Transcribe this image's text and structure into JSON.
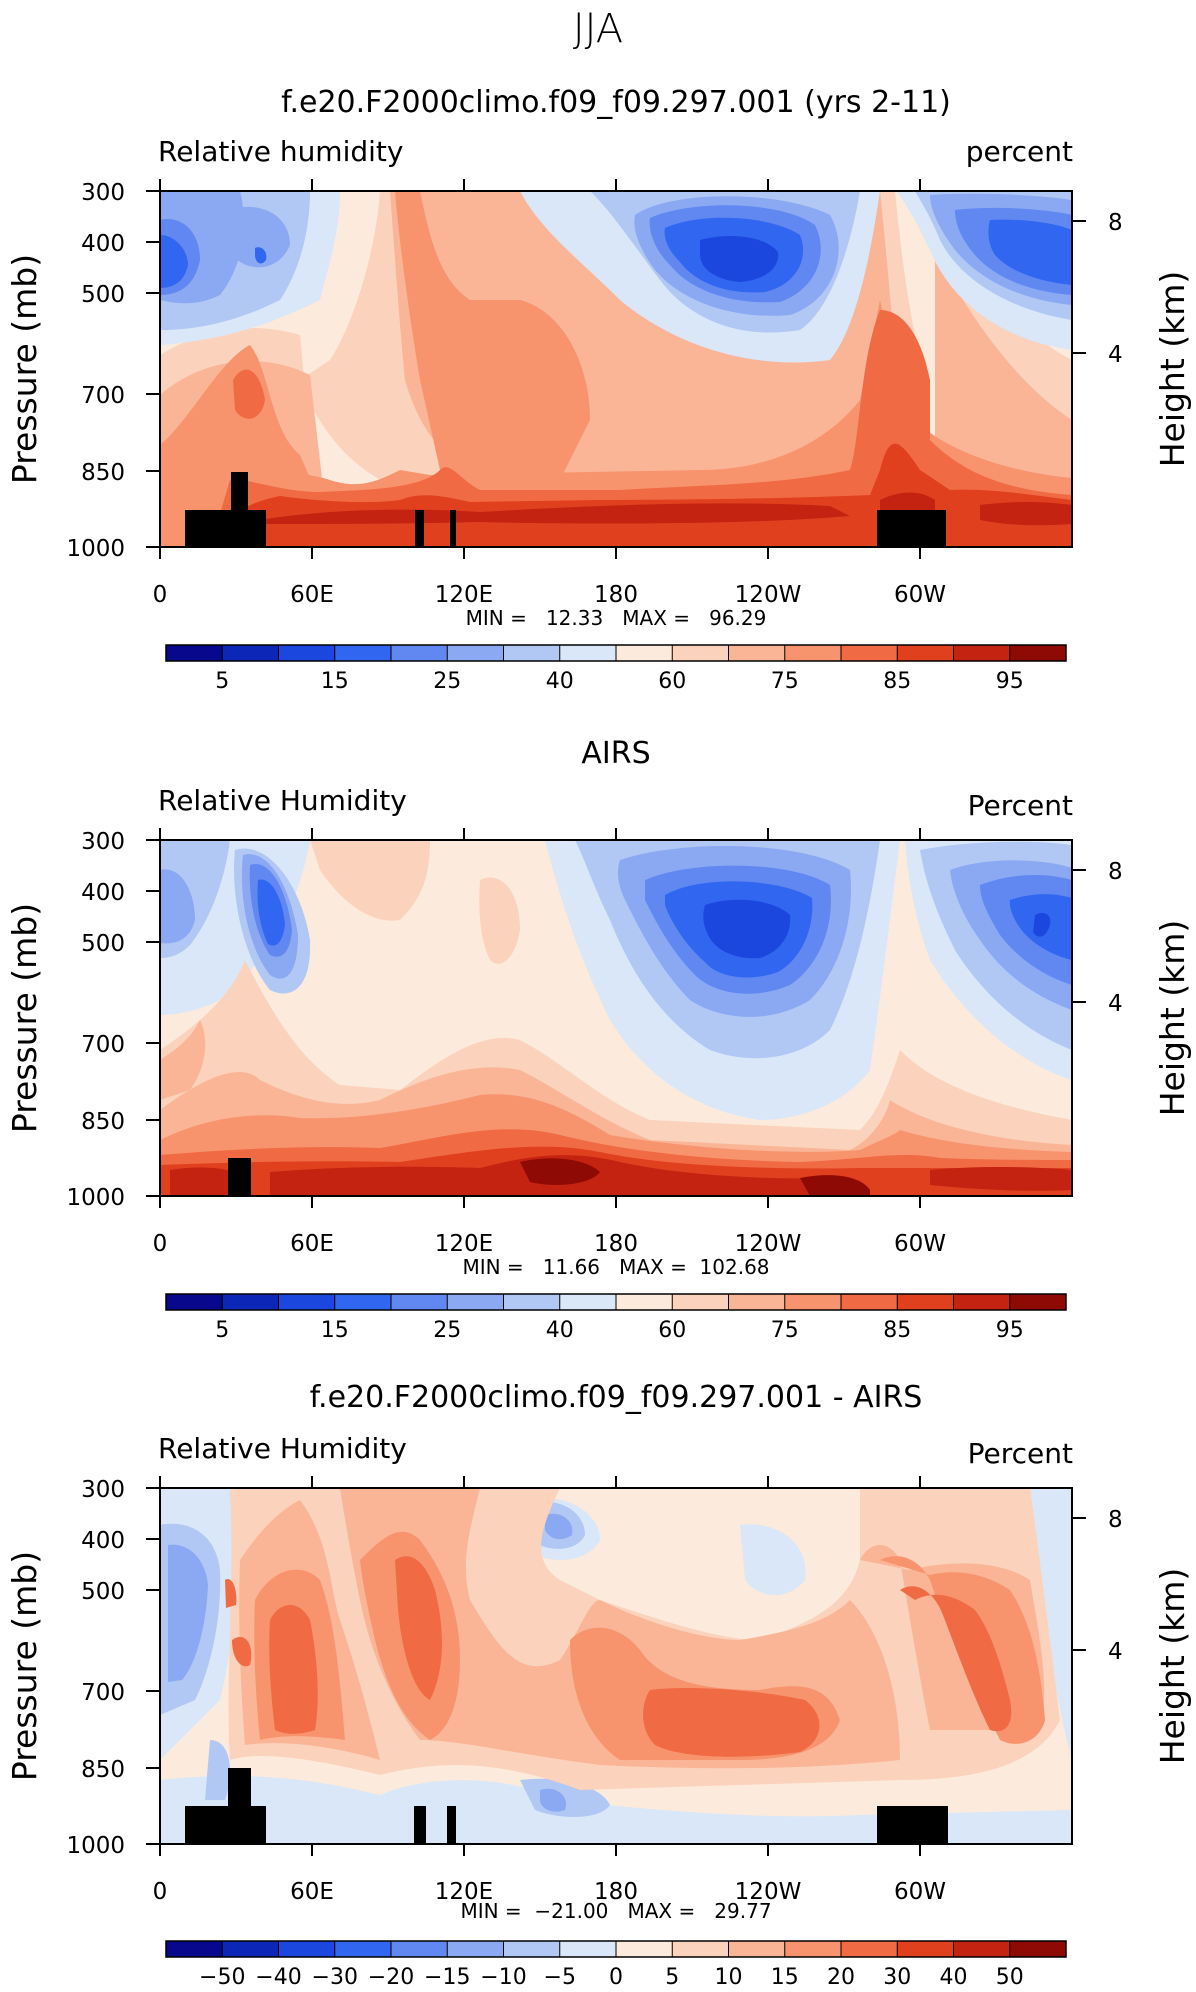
{
  "season": "JJA",
  "colorbars": [
    {
      "colors": [
        "#08088c",
        "#0c27b8",
        "#1c47de",
        "#3166f0",
        "#6188f0",
        "#8aa9f2",
        "#b1c7f4",
        "#d9e7f8",
        "#fcebdc",
        "#fbd2bc",
        "#fab597",
        "#f7946e",
        "#f06a44",
        "#e1401f",
        "#c42312",
        "#8e0a05"
      ],
      "labels": [
        "5",
        "15",
        "25",
        "40",
        "60",
        "75",
        "85",
        "95"
      ]
    },
    {
      "colors": [
        "#08088c",
        "#0c27b8",
        "#1c47de",
        "#3166f0",
        "#6188f0",
        "#8aa9f2",
        "#b1c7f4",
        "#d9e7f8",
        "#fcebdc",
        "#fbd2bc",
        "#fab597",
        "#f7946e",
        "#f06a44",
        "#e1401f",
        "#c42312",
        "#8e0a05"
      ],
      "labels": [
        "5",
        "15",
        "25",
        "40",
        "60",
        "75",
        "85",
        "95"
      ]
    },
    {
      "colors": [
        "#08088c",
        "#0c27b8",
        "#1c47de",
        "#3166f0",
        "#6188f0",
        "#8aa9f2",
        "#b1c7f4",
        "#d9e7f8",
        "#fcebdc",
        "#fbd2bc",
        "#fab597",
        "#f7946e",
        "#f06a44",
        "#e1401f",
        "#c42312",
        "#8e0a05"
      ],
      "labels": [
        "−50",
        "−40",
        "−30",
        "−20",
        "−15",
        "−10",
        "−5",
        "0",
        "5",
        "10",
        "15",
        "20",
        "30",
        "40",
        "50"
      ]
    }
  ],
  "chart_data": [
    {
      "type": "heatmap",
      "title": "f.e20.F2000climo.f09_f09.297.001 (yrs 2-11)",
      "left_label": "Relative humidity",
      "right_label": "percent",
      "xlabel": "",
      "ylabel": "Pressure (mb)",
      "y2label": "Height (km)",
      "x_ticks": [
        "0",
        "60E",
        "120E",
        "180",
        "120W",
        "60W"
      ],
      "y_ticks": [
        "300",
        "400",
        "500",
        "700",
        "850",
        "1000"
      ],
      "y2_ticks": [
        "8",
        "4"
      ],
      "stats_text": "MIN =   12.33   MAX =   96.29",
      "min": 12.33,
      "max": 96.29,
      "x_range": [
        0,
        360
      ],
      "y_range": [
        300,
        1000
      ],
      "contour_levels": [
        5,
        10,
        15,
        20,
        25,
        30,
        40,
        50,
        60,
        65,
        75,
        80,
        85,
        90,
        95
      ],
      "colorbar_labels": [
        "5",
        "15",
        "25",
        "40",
        "60",
        "75",
        "85",
        "95"
      ],
      "terrain_mask": [
        {
          "lon": [
            10,
            42
          ],
          "p_top": 925
        },
        {
          "lon": [
            27,
            34
          ],
          "p_top": 850
        },
        {
          "lon": [
            100,
            104
          ],
          "p_top": 925
        },
        {
          "lon": [
            114,
            116
          ],
          "p_top": 925
        },
        {
          "lon": [
            283,
            310
          ],
          "p_top": 925
        }
      ]
    },
    {
      "type": "heatmap",
      "title": "AIRS",
      "left_label": "Relative Humidity",
      "right_label": "Percent",
      "xlabel": "",
      "ylabel": "Pressure (mb)",
      "y2label": "Height (km)",
      "x_ticks": [
        "0",
        "60E",
        "120E",
        "180",
        "120W",
        "60W"
      ],
      "y_ticks": [
        "300",
        "400",
        "500",
        "700",
        "850",
        "1000"
      ],
      "y2_ticks": [
        "8",
        "4"
      ],
      "stats_text": "MIN =   11.66   MAX =  102.68",
      "min": 11.66,
      "max": 102.68,
      "x_range": [
        0,
        360
      ],
      "y_range": [
        300,
        1000
      ],
      "contour_levels": [
        5,
        10,
        15,
        20,
        25,
        30,
        40,
        50,
        60,
        65,
        75,
        80,
        85,
        90,
        95
      ],
      "colorbar_labels": [
        "5",
        "15",
        "25",
        "40",
        "60",
        "75",
        "85",
        "95"
      ],
      "terrain_mask": [
        {
          "lon": [
            27,
            36
          ],
          "p_top": 925
        }
      ]
    },
    {
      "type": "heatmap",
      "title": "f.e20.F2000climo.f09_f09.297.001 - AIRS",
      "left_label": "Relative Humidity",
      "right_label": "Percent",
      "xlabel": "",
      "ylabel": "Pressure (mb)",
      "y2label": "Height (km)",
      "x_ticks": [
        "0",
        "60E",
        "120E",
        "180",
        "120W",
        "60W"
      ],
      "y_ticks": [
        "300",
        "400",
        "500",
        "700",
        "850",
        "1000"
      ],
      "y2_ticks": [
        "8",
        "4"
      ],
      "stats_text": "MIN =  −21.00   MAX =   29.77",
      "min": -21.0,
      "max": 29.77,
      "x_range": [
        0,
        360
      ],
      "y_range": [
        300,
        1000
      ],
      "contour_levels": [
        -50,
        -40,
        -30,
        -20,
        -15,
        -10,
        -5,
        0,
        5,
        10,
        15,
        20,
        30,
        40,
        50
      ],
      "colorbar_labels": [
        "−50",
        "−40",
        "−30",
        "−20",
        "−15",
        "−10",
        "−5",
        "0",
        "5",
        "10",
        "15",
        "20",
        "30",
        "40",
        "50"
      ],
      "terrain_mask": [
        {
          "lon": [
            10,
            42
          ],
          "p_top": 925
        },
        {
          "lon": [
            27,
            36
          ],
          "p_top": 850
        },
        {
          "lon": [
            100,
            105
          ],
          "p_top": 925
        },
        {
          "lon": [
            113,
            117
          ],
          "p_top": 925
        },
        {
          "lon": [
            283,
            311
          ],
          "p_top": 925
        }
      ]
    }
  ]
}
